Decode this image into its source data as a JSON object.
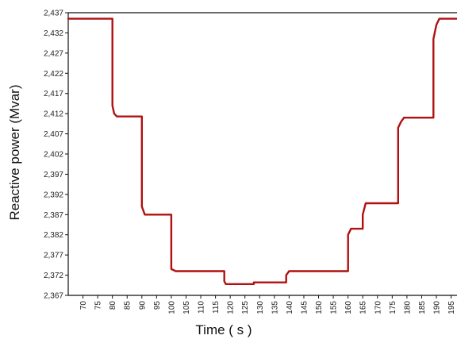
{
  "chart_data": {
    "type": "line",
    "title": "",
    "xlabel": "Time ( s )",
    "ylabel": "Reactive power (Mvar)",
    "xlim": [
      65,
      197
    ],
    "ylim": [
      2.367,
      2.437
    ],
    "grid": false,
    "x_ticks": [
      70,
      75,
      80,
      85,
      90,
      95,
      100,
      105,
      110,
      115,
      120,
      125,
      130,
      135,
      140,
      145,
      150,
      155,
      160,
      165,
      170,
      175,
      180,
      185,
      190,
      195
    ],
    "y_ticks": [
      2.367,
      2.372,
      2.377,
      2.382,
      2.387,
      2.392,
      2.397,
      2.402,
      2.407,
      2.412,
      2.417,
      2.422,
      2.427,
      2.432,
      2.437
    ],
    "y_tick_labels": [
      "2,367",
      "2,372",
      "2,377",
      "2,382",
      "2,387",
      "2,392",
      "2,397",
      "2,402",
      "2,407",
      "2,412",
      "2,417",
      "2,422",
      "2,427",
      "2,432",
      "2,437"
    ],
    "line_color": "#b01010",
    "series": [
      {
        "x": [
          65,
          80,
          80,
          80.6,
          81.5,
          90,
          90,
          91,
          100,
          100,
          101.5,
          118,
          118,
          118.5,
          128,
          128,
          139,
          139,
          140,
          160,
          160,
          161,
          165,
          165,
          166,
          171,
          171,
          177,
          177,
          178,
          179,
          189,
          189,
          190,
          191,
          197
        ],
        "y": [
          2.4355,
          2.4355,
          2.414,
          2.412,
          2.4113,
          2.4113,
          2.389,
          2.387,
          2.387,
          2.3735,
          2.373,
          2.373,
          2.3705,
          2.3698,
          2.3698,
          2.3702,
          2.3702,
          2.372,
          2.373,
          2.373,
          2.382,
          2.3835,
          2.3835,
          2.387,
          2.3898,
          2.3898,
          2.3898,
          2.3898,
          2.4085,
          2.41,
          2.411,
          2.411,
          2.4305,
          2.434,
          2.4355,
          2.4355
        ]
      }
    ]
  }
}
